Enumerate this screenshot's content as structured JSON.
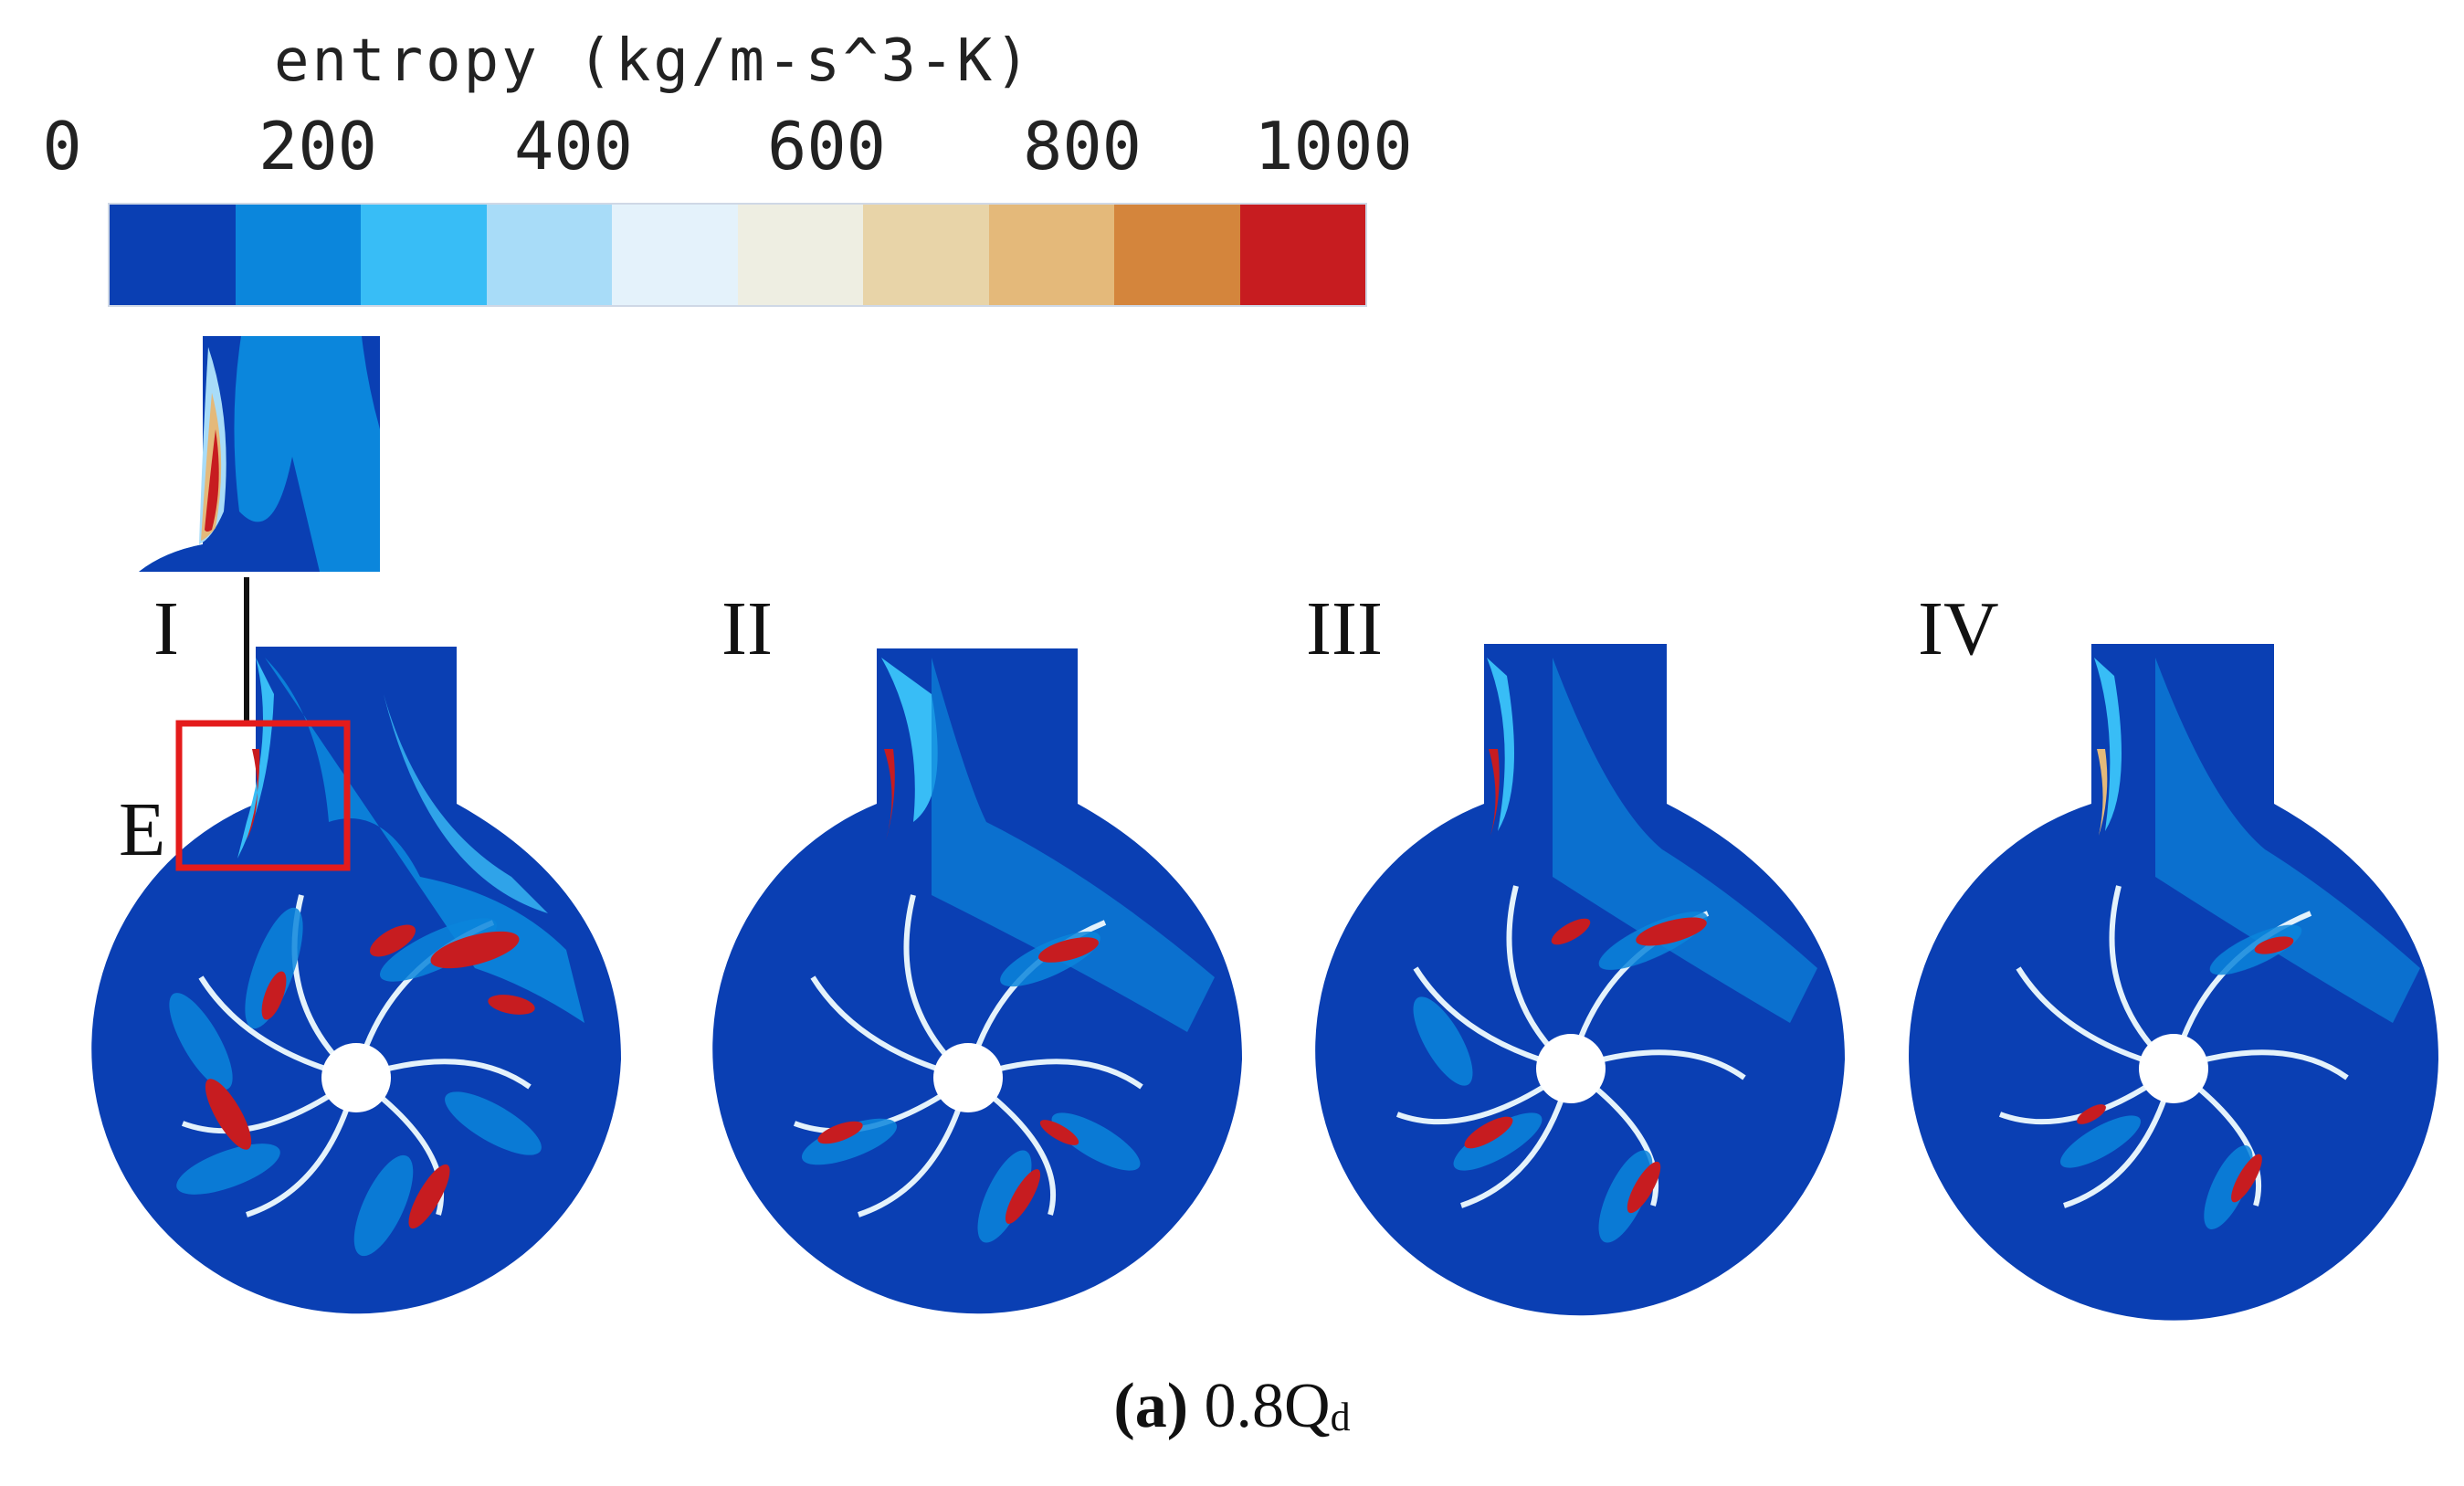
{
  "legend": {
    "title": "entropy  (kg/m-s^3-K)",
    "ticks": [
      "0",
      "200",
      "400",
      "600",
      "800",
      "1000"
    ],
    "colors": [
      "#0a3fb3",
      "#0b86dc",
      "#38bdf6",
      "#a8dcf8",
      "#e4f2fb",
      "#eeeee2",
      "#e8d4a8",
      "#e4b97a",
      "#d4853c",
      "#c71c20"
    ]
  },
  "labels": {
    "panel_1": "I",
    "panel_2": "II",
    "panel_3": "III",
    "panel_4": "IV",
    "region_e": "E"
  },
  "caption": {
    "letter": "(a)",
    "flow": "0.8Q",
    "subscript": "d"
  }
}
